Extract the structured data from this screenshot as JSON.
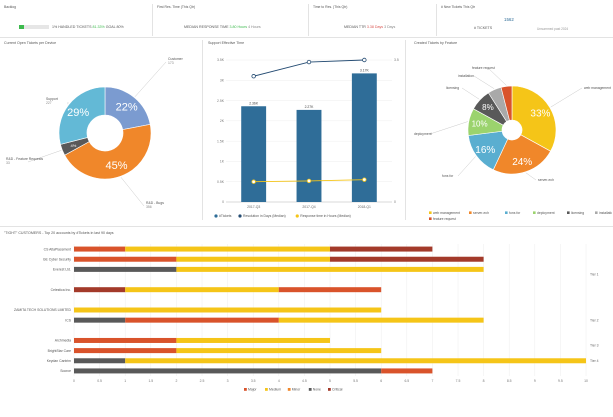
{
  "kpis": {
    "backlog": {
      "header": "Backlog",
      "prefix": "1% HANDLED TICKETS",
      "pct": "81.33%",
      "suffix": "GOAL",
      "goal": "80%",
      "fill": 0.17
    },
    "first_response": {
      "header": "First Res. Time (This Qtr)",
      "label": "MEDIAN RESPONSE TIME",
      "value": "3.80 Hours",
      "goal": "4 Hours"
    },
    "time_to_resolve": {
      "header": "Time to Res. (This Qtr)",
      "label": "MEDIAN TTR",
      "value": "3.38 Days",
      "goal": "3 Days"
    },
    "new_tickets": {
      "header": "# New Tickets This Qtr",
      "count": "1562",
      "label": "# TICKETS",
      "sub": "Unsummed past 2024"
    }
  },
  "colors": {
    "green": "#3dba4e",
    "red": "#d9534f",
    "orange": "#f0872a",
    "blue_bar": "#2f6d98",
    "yellow": "#f5c518",
    "teal": "#5aaed0",
    "gray": "#5a5a5a"
  },
  "chart_data": [
    {
      "type": "pie",
      "title": "Current Open Tickets per Device",
      "slices": [
        {
          "name": "Customer",
          "sub": "173",
          "value": 22,
          "label": "22%",
          "color": "#7b9bd0"
        },
        {
          "name": "R&D - Bugs",
          "sub": "356",
          "value": 45,
          "label": "45%",
          "color": "#f0872a"
        },
        {
          "name": "R&D - Feature Requests",
          "sub": "33",
          "value": 4,
          "label": "4%",
          "color": "#595959"
        },
        {
          "name": "Support",
          "sub": "227",
          "value": 29,
          "label": "29%",
          "color": "#63b9d6"
        }
      ]
    },
    {
      "type": "bar",
      "title": "Support Effective Time",
      "categories": [
        "2017-Q3",
        "2017-Q4",
        "2018-Q1"
      ],
      "series": [
        {
          "name": "#Tickets",
          "values": [
            2.36,
            2.27,
            3.17
          ],
          "color": "#2f6d98"
        },
        {
          "name": "Resolution in Days (Median)",
          "values": [
            3.1,
            3.45,
            3.5
          ],
          "color": "#254c73"
        },
        {
          "name": "Response time in Hours (Median)",
          "values": [
            0.5,
            0.52,
            0.55
          ],
          "color": "#f5c518"
        }
      ],
      "bar_labels": [
        "2.36K",
        "2.27K",
        "3.17K"
      ],
      "ylim": [
        0,
        3.5
      ],
      "y_ticks": [
        "0",
        "0.5K",
        "1K",
        "1.5K",
        "2K",
        "2.5K",
        "3K",
        "3.5K"
      ],
      "y2_ticks": [
        "0",
        "",
        "",
        "",
        "",
        "",
        "",
        "3.5"
      ]
    },
    {
      "type": "pie",
      "title": "Created Tickets by Feature",
      "slices": [
        {
          "name": "web management",
          "value": 33,
          "label": "33%",
          "color": "#f5c518"
        },
        {
          "name": "server-ech",
          "value": 24,
          "label": "24%",
          "color": "#f0872a"
        },
        {
          "name": "fons for",
          "value": 16,
          "label": "16%",
          "color": "#5aaed0"
        },
        {
          "name": "deployment",
          "value": 10,
          "label": "10%",
          "color": "#9bd36d"
        },
        {
          "name": "licensing",
          "value": 8,
          "label": "8%",
          "color": "#595959"
        },
        {
          "name": "installation",
          "value": 5,
          "label": "",
          "color": "#a9a9a9"
        },
        {
          "name": "feature request",
          "value": 4,
          "label": "",
          "color": "#d9532b"
        }
      ]
    },
    {
      "type": "bar",
      "title": "\"TIGHT\" CUSTOMERS - Top 20 accounts by #Tickets in last 90 days",
      "x_ticks": [
        "0",
        "0.5",
        "1",
        "1.5",
        "2",
        "2.5",
        "3",
        "3.5",
        "4",
        "4.5",
        "5",
        "5.5",
        "6",
        "6.5",
        "7",
        "7.5",
        "8",
        "8.5",
        "9",
        "9.5",
        "10"
      ],
      "xlim": [
        0,
        10
      ],
      "segment_names": [
        "Major",
        "Medium",
        "Minor",
        "None",
        "Critical"
      ],
      "segment_colors": [
        "#d9532b",
        "#f5c518",
        "#f0872a",
        "#595959",
        "#a33a2a"
      ],
      "rows": [
        {
          "name": "CS AltaPlacement",
          "segments": [
            [
              0,
              1
            ],
            [
              1,
              5
            ],
            [
              4,
              7
            ]
          ]
        },
        {
          "name": "GE Cyber Security",
          "segments": [
            [
              0,
              2
            ],
            [
              1,
              5
            ],
            [
              4,
              8
            ]
          ]
        },
        {
          "name": "Everest Ltd.",
          "segments": [
            [
              3,
              2
            ],
            [
              1,
              8
            ]
          ]
        },
        {
          "name": "",
          "segments": []
        },
        {
          "name": "Celestica Inc.",
          "segments": [
            [
              4,
              1
            ],
            [
              1,
              4
            ],
            [
              0,
              6
            ]
          ]
        },
        {
          "name": "",
          "segments": []
        },
        {
          "name": "ZAMITA TECH SOLUTIONS LIMITED",
          "segments": [
            [
              1,
              6
            ]
          ]
        },
        {
          "name": "ICS",
          "segments": [
            [
              3,
              1
            ],
            [
              0,
              4
            ],
            [
              1,
              8
            ]
          ]
        },
        {
          "name": "",
          "segments": []
        },
        {
          "name": "Archmedia",
          "segments": [
            [
              0,
              2
            ],
            [
              1,
              5
            ]
          ]
        },
        {
          "name": "BrightStar Care",
          "segments": [
            [
              0,
              2
            ],
            [
              1,
              6
            ]
          ]
        },
        {
          "name": "Keydan Cantrim",
          "segments": [
            [
              3,
              1
            ],
            [
              1,
              10
            ]
          ]
        },
        {
          "name": "Soorce",
          "segments": [
            [
              3,
              6
            ],
            [
              0,
              7
            ]
          ]
        }
      ],
      "tiers": [
        "Tier 1",
        "Tier 2",
        "Tier 3",
        "Tier 4"
      ]
    }
  ]
}
